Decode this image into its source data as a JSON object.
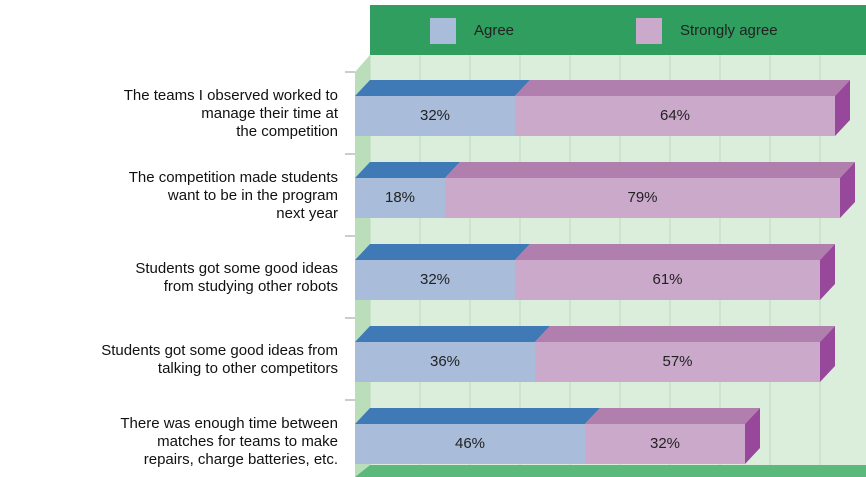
{
  "chart_data": {
    "type": "stacked_bar_3d",
    "orientation": "horizontal",
    "categories": [
      "The teams I observed worked to\nmanage their time at\nthe competition",
      "The competition made students\nwant to be in the program\nnext year",
      "Students got some good ideas\nfrom studying other robots",
      "Students got some good ideas from\ntalking to other competitors",
      "There was enough time between\nmatches for teams to make\nrepairs, charge batteries, etc."
    ],
    "series": [
      {
        "name": "Agree",
        "color": "#a9bcd9",
        "top_color": "#3f79b6",
        "values": [
          32,
          18,
          32,
          36,
          46
        ],
        "value_labels": [
          "32%",
          "18%",
          "32%",
          "36%",
          "46%"
        ]
      },
      {
        "name": "Strongly agree",
        "color": "#caa9ca",
        "top_color": "#b17fae",
        "side_color": "#98489a",
        "values": [
          64,
          79,
          61,
          57,
          32
        ],
        "value_labels": [
          "64%",
          "79%",
          "61%",
          "57%",
          "32%"
        ]
      }
    ],
    "xlim": [
      0,
      100
    ],
    "xticks": [
      0,
      10,
      20,
      30,
      40,
      50,
      60,
      70,
      80,
      90,
      100
    ],
    "grid": true,
    "legend": "top"
  }
}
